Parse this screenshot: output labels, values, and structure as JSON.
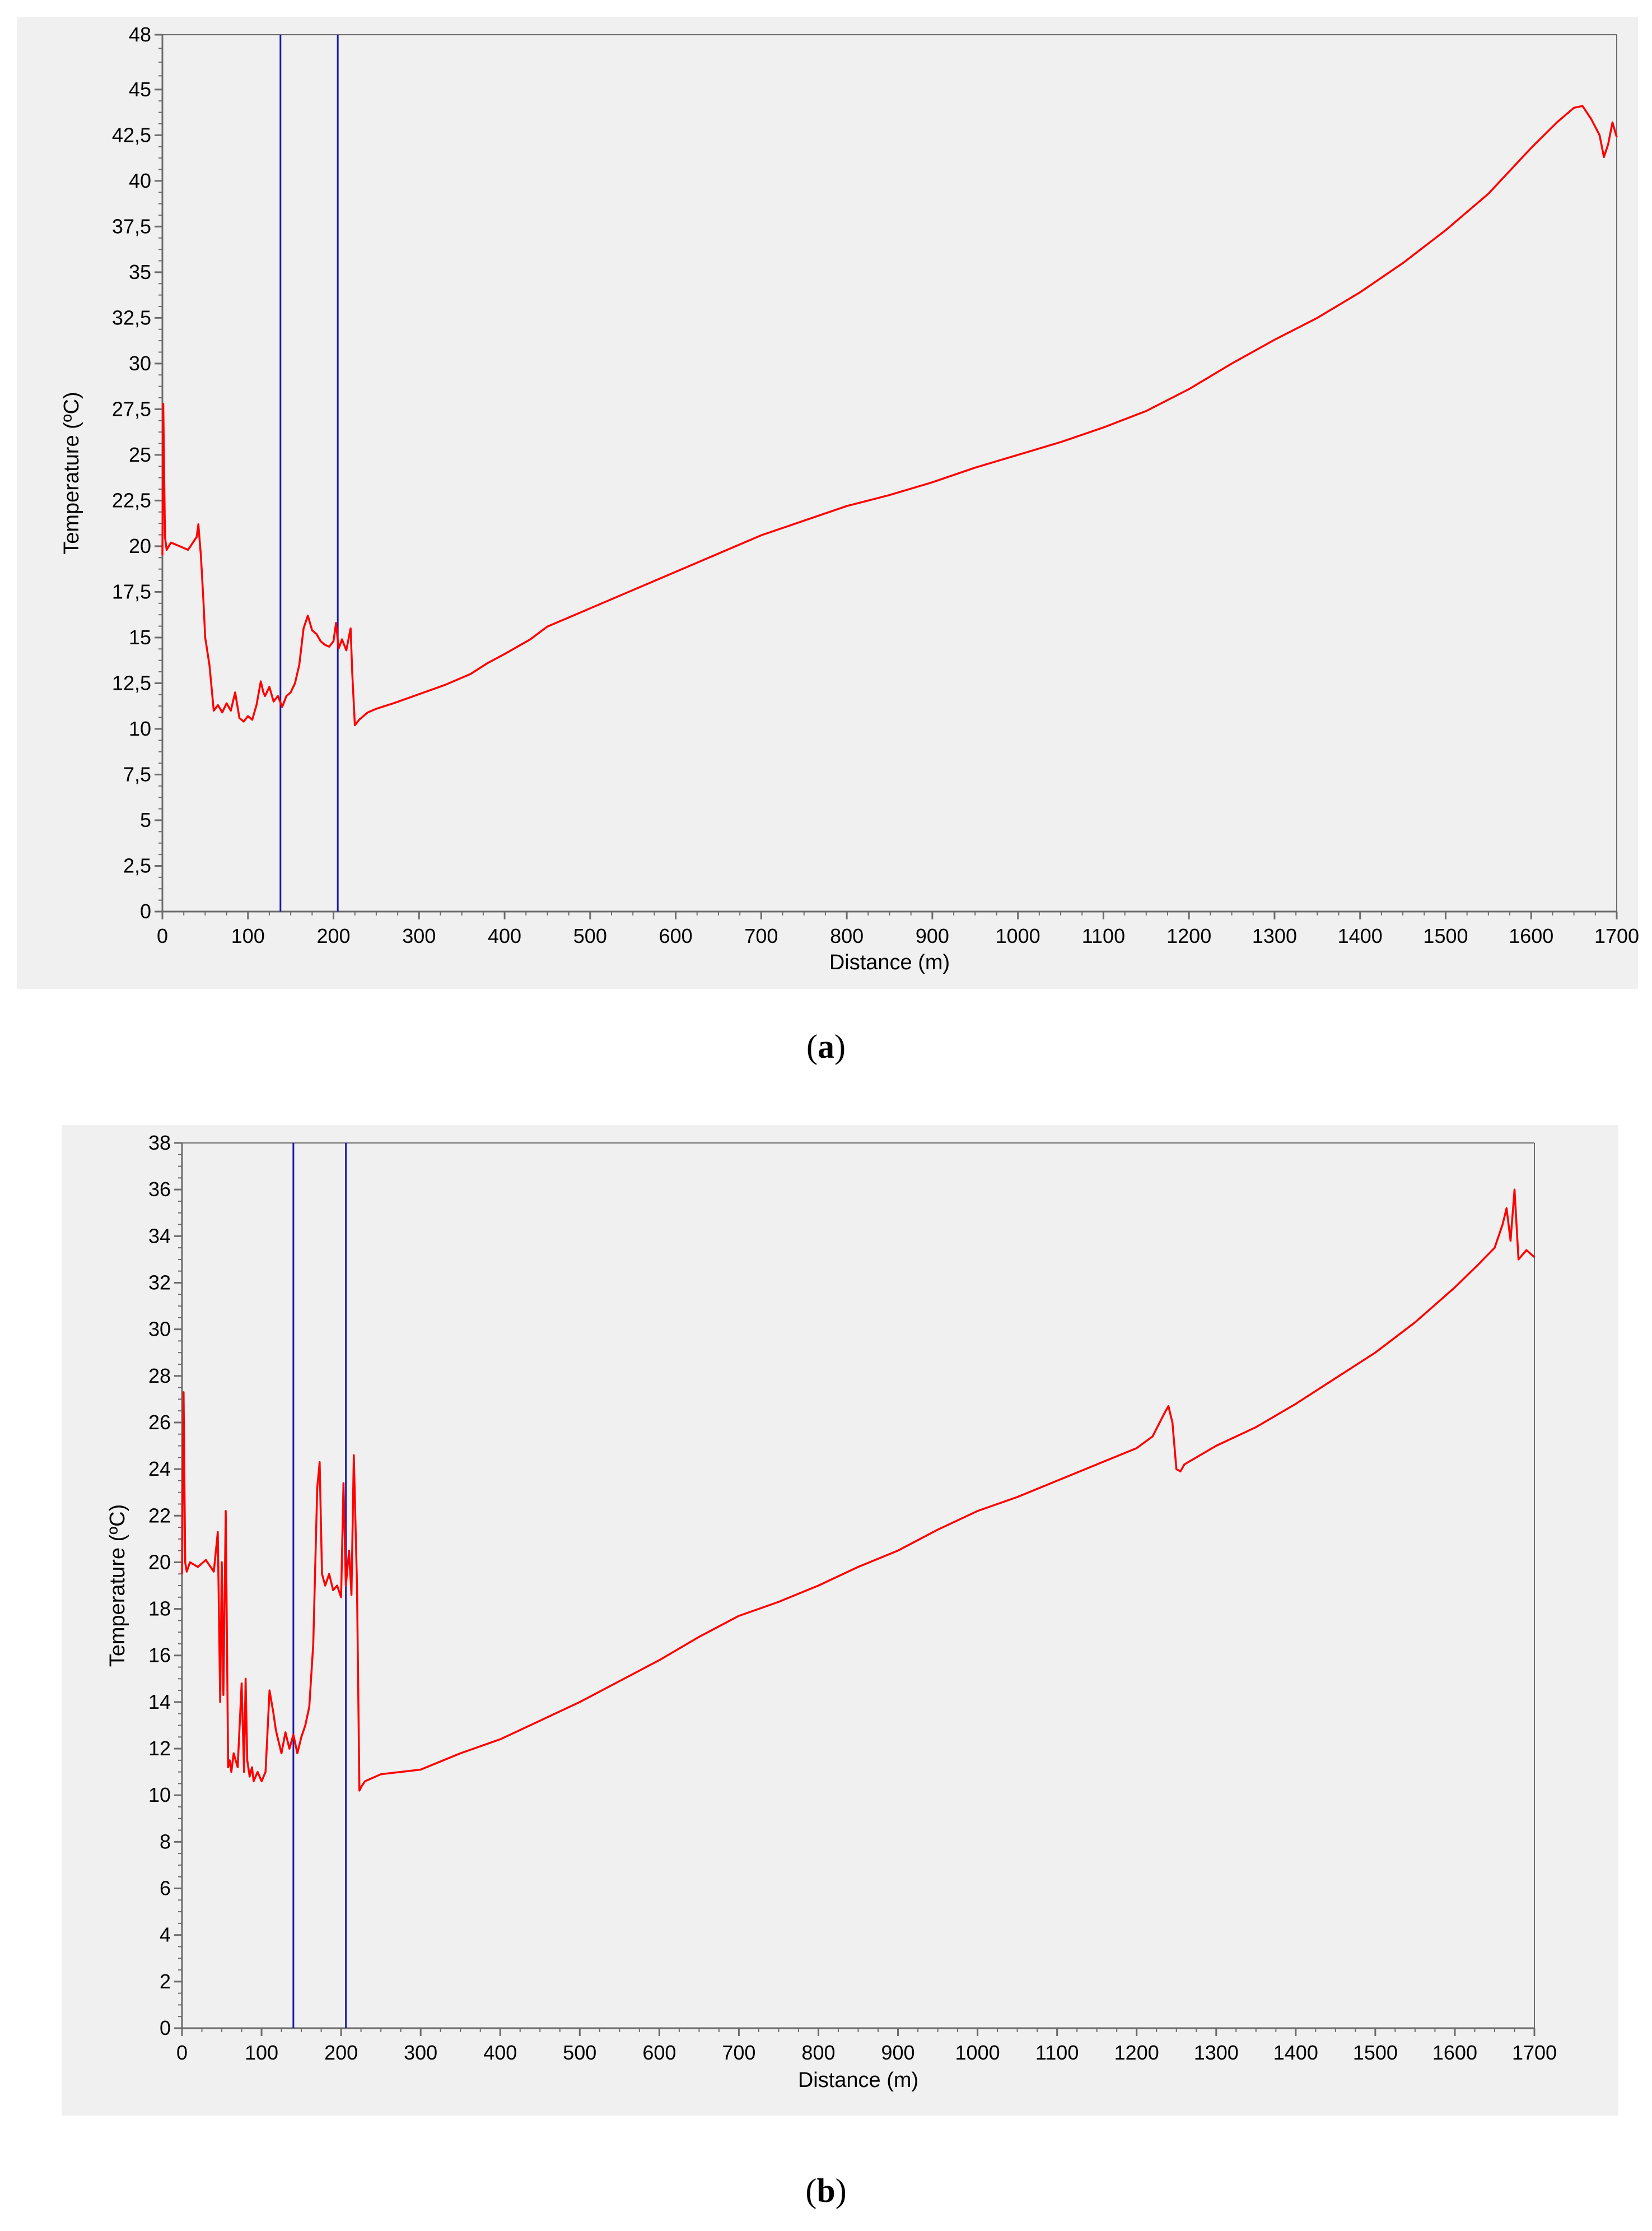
{
  "colors": {
    "panel_bg": "#f0f0f0",
    "series": "#ff0000",
    "marker": "#1a1aa8",
    "axis": "#6b6b6b"
  },
  "chart_data": [
    {
      "id": "a",
      "type": "line",
      "caption": {
        "open": "(",
        "letter": "a",
        "close": ")"
      },
      "xlabel": "Distance (m)",
      "ylabel": "Temperature (ºC)",
      "xlim": [
        0,
        1700
      ],
      "ylim": [
        0,
        48
      ],
      "xticks": [
        0,
        100,
        200,
        300,
        400,
        500,
        600,
        700,
        800,
        900,
        1000,
        1100,
        1200,
        1300,
        1400,
        1500,
        1600,
        1700
      ],
      "yticks": [
        0,
        2.5,
        5,
        7.5,
        10,
        12.5,
        15,
        17.5,
        20,
        22.5,
        25,
        27.5,
        30,
        32.5,
        35,
        37.5,
        40,
        42.5,
        45,
        48
      ],
      "ytick_labels": [
        "0",
        "2,5",
        "5",
        "7,5",
        "10",
        "12,5",
        "15",
        "17,5",
        "20",
        "22,5",
        "25",
        "27,5",
        "30",
        "32,5",
        "35",
        "37,5",
        "40",
        "42,5",
        "45",
        "48"
      ],
      "markers": [
        138,
        205
      ],
      "series": [
        {
          "name": "Temperature",
          "x": [
            0,
            1,
            3,
            5,
            10,
            20,
            30,
            40,
            42,
            45,
            48,
            50,
            55,
            60,
            65,
            70,
            75,
            80,
            85,
            90,
            95,
            100,
            105,
            110,
            115,
            118,
            120,
            125,
            130,
            135,
            140,
            145,
            150,
            155,
            160,
            165,
            170,
            175,
            180,
            185,
            190,
            195,
            200,
            203,
            206,
            210,
            215,
            220,
            222,
            225,
            230,
            240,
            250,
            270,
            300,
            330,
            360,
            380,
            400,
            430,
            450,
            500,
            550,
            600,
            650,
            700,
            750,
            800,
            850,
            900,
            950,
            1000,
            1050,
            1100,
            1150,
            1200,
            1250,
            1300,
            1350,
            1400,
            1450,
            1500,
            1550,
            1600,
            1630,
            1650,
            1660,
            1670,
            1680,
            1685,
            1690,
            1695,
            1700
          ],
          "y": [
            19.5,
            27.8,
            20.5,
            19.8,
            20.2,
            20.0,
            19.8,
            20.5,
            21.2,
            19.5,
            17.0,
            15.0,
            13.5,
            11.0,
            11.3,
            10.9,
            11.4,
            11.0,
            12.0,
            10.6,
            10.4,
            10.7,
            10.5,
            11.3,
            12.6,
            12.0,
            11.8,
            12.3,
            11.5,
            11.8,
            11.2,
            11.8,
            12.0,
            12.5,
            13.5,
            15.5,
            16.2,
            15.4,
            15.2,
            14.8,
            14.6,
            14.5,
            14.8,
            15.8,
            14.4,
            14.9,
            14.3,
            15.5,
            13.0,
            10.2,
            10.5,
            10.9,
            11.1,
            11.4,
            11.9,
            12.4,
            13.0,
            13.6,
            14.1,
            14.9,
            15.6,
            16.6,
            17.6,
            18.6,
            19.6,
            20.6,
            21.4,
            22.2,
            22.8,
            23.5,
            24.3,
            25.0,
            25.7,
            26.5,
            27.4,
            28.6,
            30.0,
            31.3,
            32.5,
            33.9,
            35.5,
            37.3,
            39.3,
            41.8,
            43.2,
            44.0,
            44.1,
            43.4,
            42.5,
            41.3,
            42.0,
            43.2,
            42.4
          ]
        }
      ]
    },
    {
      "id": "b",
      "type": "line",
      "caption": {
        "open": "(",
        "letter": "b",
        "close": ")"
      },
      "xlabel": "Distance (m)",
      "ylabel": "Temperature (ºC)",
      "xlim": [
        0,
        1700
      ],
      "ylim": [
        0,
        38
      ],
      "xticks": [
        0,
        100,
        200,
        300,
        400,
        500,
        600,
        700,
        800,
        900,
        1000,
        1100,
        1200,
        1300,
        1400,
        1500,
        1600,
        1700
      ],
      "yticks": [
        0,
        2,
        4,
        6,
        8,
        10,
        12,
        14,
        16,
        18,
        20,
        22,
        24,
        26,
        28,
        30,
        32,
        34,
        36,
        38
      ],
      "ytick_labels": [
        "0",
        "2",
        "4",
        "6",
        "8",
        "10",
        "12",
        "14",
        "16",
        "18",
        "20",
        "22",
        "24",
        "26",
        "28",
        "30",
        "32",
        "34",
        "36",
        "38"
      ],
      "markers": [
        140,
        206
      ],
      "series": [
        {
          "name": "Temperature",
          "x": [
            0,
            2,
            4,
            6,
            10,
            20,
            30,
            40,
            45,
            48,
            50,
            52,
            55,
            58,
            60,
            62,
            65,
            70,
            75,
            78,
            80,
            82,
            85,
            88,
            90,
            95,
            100,
            105,
            110,
            115,
            118,
            120,
            125,
            130,
            135,
            140,
            145,
            150,
            155,
            160,
            165,
            170,
            173,
            176,
            180,
            185,
            190,
            195,
            200,
            203,
            206,
            210,
            213,
            216,
            220,
            223,
            226,
            230,
            250,
            300,
            350,
            400,
            450,
            500,
            550,
            600,
            650,
            700,
            750,
            800,
            850,
            900,
            950,
            1000,
            1050,
            1100,
            1150,
            1200,
            1220,
            1235,
            1240,
            1245,
            1250,
            1255,
            1260,
            1300,
            1350,
            1400,
            1450,
            1500,
            1550,
            1600,
            1630,
            1650,
            1660,
            1665,
            1670,
            1675,
            1680,
            1690,
            1700
          ],
          "y": [
            19.5,
            27.3,
            20.0,
            19.6,
            20.0,
            19.8,
            20.1,
            19.6,
            21.3,
            14.0,
            20.0,
            14.3,
            22.2,
            11.2,
            11.5,
            11.0,
            11.8,
            11.2,
            14.8,
            11.0,
            15.0,
            11.5,
            10.8,
            11.2,
            10.6,
            11.0,
            10.6,
            11.0,
            14.5,
            13.5,
            12.8,
            12.5,
            11.8,
            12.7,
            12.0,
            12.6,
            11.8,
            12.5,
            13.0,
            13.8,
            16.5,
            23.2,
            24.3,
            19.5,
            19.0,
            19.5,
            18.8,
            19.0,
            18.5,
            23.4,
            19.0,
            20.5,
            18.6,
            24.6,
            19.0,
            10.2,
            10.4,
            10.6,
            10.9,
            11.1,
            11.8,
            12.4,
            13.2,
            14.0,
            14.9,
            15.8,
            16.8,
            17.7,
            18.3,
            19.0,
            19.8,
            20.5,
            21.4,
            22.2,
            22.8,
            23.5,
            24.2,
            24.9,
            25.4,
            26.4,
            26.7,
            26.0,
            24.0,
            23.9,
            24.2,
            25.0,
            25.8,
            26.8,
            27.9,
            29.0,
            30.3,
            31.8,
            32.8,
            33.5,
            34.5,
            35.2,
            33.8,
            36.0,
            33.0,
            33.4,
            33.1
          ]
        }
      ]
    }
  ]
}
